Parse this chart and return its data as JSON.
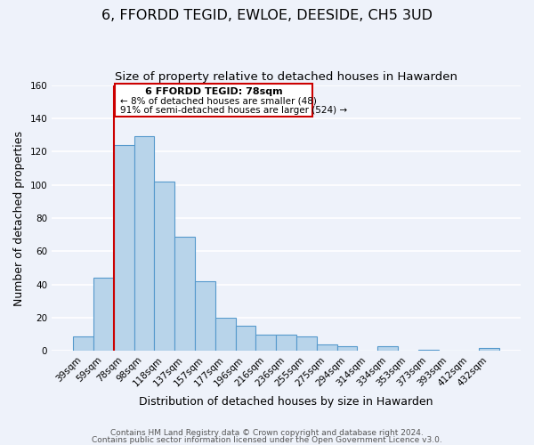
{
  "title": "6, FFORDD TEGID, EWLOE, DEESIDE, CH5 3UD",
  "subtitle": "Size of property relative to detached houses in Hawarden",
  "xlabel": "Distribution of detached houses by size in Hawarden",
  "ylabel": "Number of detached properties",
  "categories": [
    "39sqm",
    "59sqm",
    "78sqm",
    "98sqm",
    "118sqm",
    "137sqm",
    "157sqm",
    "177sqm",
    "196sqm",
    "216sqm",
    "236sqm",
    "255sqm",
    "275sqm",
    "294sqm",
    "314sqm",
    "334sqm",
    "353sqm",
    "373sqm",
    "393sqm",
    "412sqm",
    "432sqm"
  ],
  "values": [
    9,
    44,
    124,
    129,
    102,
    69,
    42,
    20,
    15,
    10,
    10,
    9,
    4,
    3,
    0,
    3,
    0,
    1,
    0,
    0,
    2
  ],
  "bar_color": "#b8d4ea",
  "bar_edge_color": "#5599cc",
  "vline_x_index": 2,
  "vline_color": "#cc0000",
  "box_text_line1": "6 FFORDD TEGID: 78sqm",
  "box_text_line2": "← 8% of detached houses are smaller (48)",
  "box_text_line3": "91% of semi-detached houses are larger (524) →",
  "box_color": "#ffffff",
  "box_edge_color": "#cc0000",
  "ylim": [
    0,
    160
  ],
  "yticks": [
    0,
    20,
    40,
    60,
    80,
    100,
    120,
    140,
    160
  ],
  "footer_line1": "Contains HM Land Registry data © Crown copyright and database right 2024.",
  "footer_line2": "Contains public sector information licensed under the Open Government Licence v3.0.",
  "background_color": "#eef2fa",
  "grid_color": "#ffffff",
  "title_fontsize": 11.5,
  "subtitle_fontsize": 9.5,
  "axis_label_fontsize": 9,
  "tick_fontsize": 7.5,
  "footer_fontsize": 6.5
}
